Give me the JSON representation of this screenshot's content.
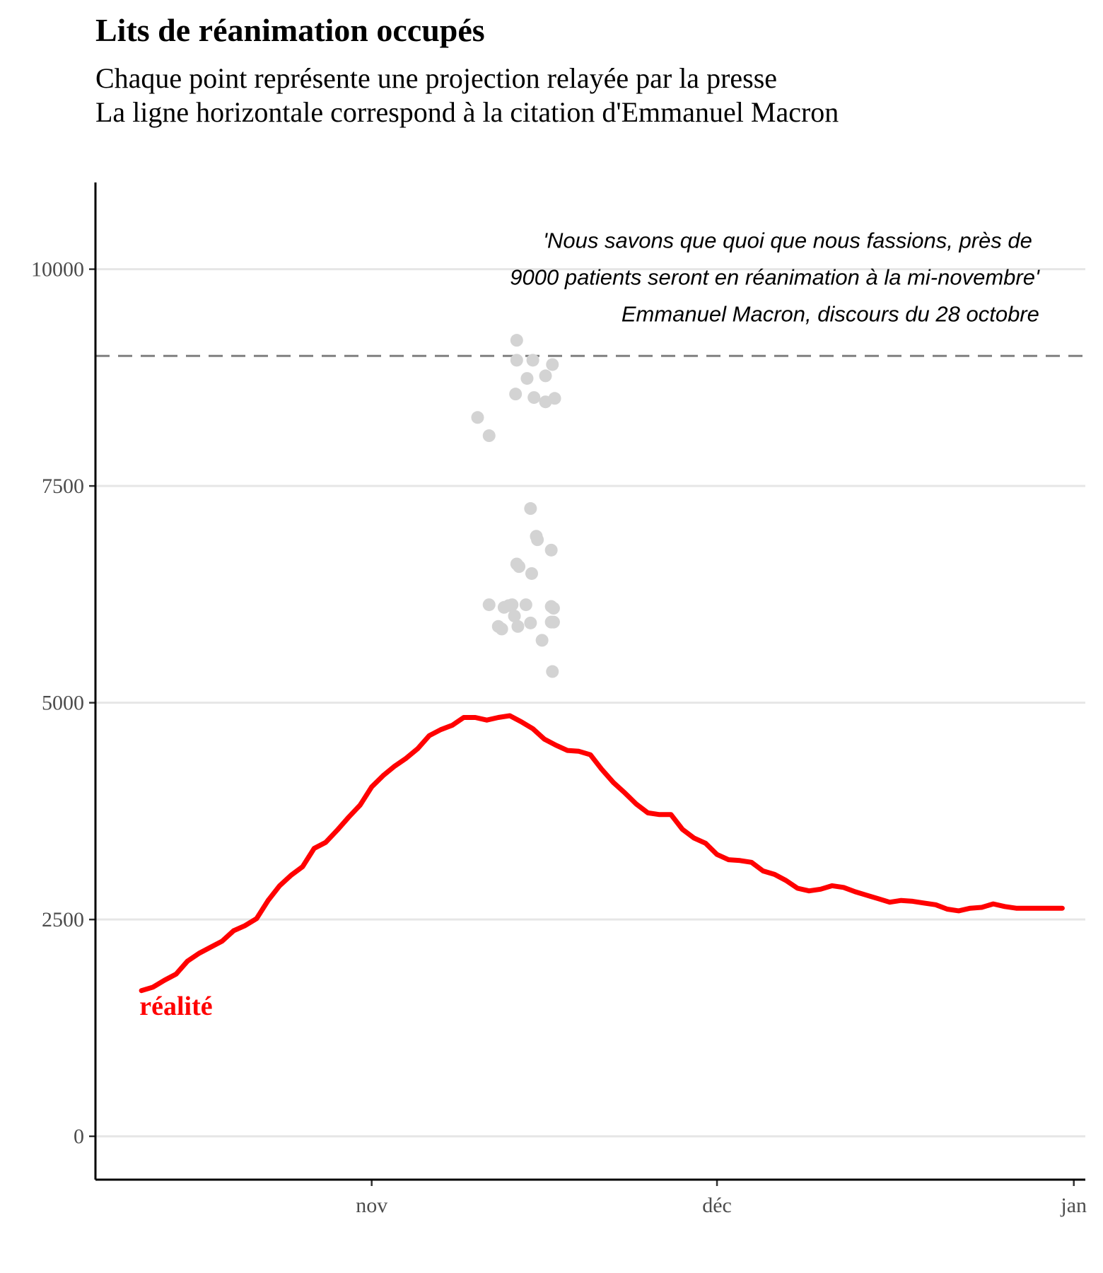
{
  "chart_data": {
    "type": "line",
    "title": "Lits de réanimation occupés",
    "subtitle_lines": [
      "Chaque point représente une projection relayée par la presse",
      "La ligne horizontale correspond à la citation d'Emmanuel Macron"
    ],
    "xlabel": "",
    "ylabel": "",
    "xlim": [
      "2020-10-08",
      "2021-01-02"
    ],
    "ylim": [
      -500,
      11000
    ],
    "x_ticks": [
      {
        "date": "2020-11-01",
        "label": "nov"
      },
      {
        "date": "2020-12-01",
        "label": "déc"
      },
      {
        "date": "2021-01-01",
        "label": "jan"
      }
    ],
    "y_ticks": [
      0,
      2500,
      5000,
      7500,
      10000
    ],
    "grid": "horizontal",
    "series": [
      {
        "name": "réalité",
        "color": "#ff0000",
        "x": [
          "2020-10-12",
          "2020-10-13",
          "2020-10-14",
          "2020-10-15",
          "2020-10-16",
          "2020-10-17",
          "2020-10-18",
          "2020-10-19",
          "2020-10-20",
          "2020-10-21",
          "2020-10-22",
          "2020-10-23",
          "2020-10-24",
          "2020-10-25",
          "2020-10-26",
          "2020-10-27",
          "2020-10-28",
          "2020-10-29",
          "2020-10-30",
          "2020-10-31",
          "2020-11-01",
          "2020-11-02",
          "2020-11-03",
          "2020-11-04",
          "2020-11-05",
          "2020-11-06",
          "2020-11-07",
          "2020-11-08",
          "2020-11-09",
          "2020-11-10",
          "2020-11-11",
          "2020-11-12",
          "2020-11-13",
          "2020-11-14",
          "2020-11-15",
          "2020-11-16",
          "2020-11-17",
          "2020-11-18",
          "2020-11-19",
          "2020-11-20",
          "2020-11-21",
          "2020-11-22",
          "2020-11-23",
          "2020-11-24",
          "2020-11-25",
          "2020-11-26",
          "2020-11-27",
          "2020-11-28",
          "2020-11-29",
          "2020-11-30",
          "2020-12-01",
          "2020-12-02",
          "2020-12-03",
          "2020-12-04",
          "2020-12-05",
          "2020-12-06",
          "2020-12-07",
          "2020-12-08",
          "2020-12-09",
          "2020-12-10",
          "2020-12-11",
          "2020-12-12",
          "2020-12-13",
          "2020-12-14",
          "2020-12-15",
          "2020-12-16",
          "2020-12-17",
          "2020-12-18",
          "2020-12-19",
          "2020-12-20",
          "2020-12-21",
          "2020-12-22",
          "2020-12-23",
          "2020-12-24",
          "2020-12-25",
          "2020-12-26",
          "2020-12-27",
          "2020-12-28",
          "2020-12-29",
          "2020-12-30",
          "2020-12-31"
        ],
        "values": [
          1680,
          1720,
          1800,
          1870,
          2020,
          2110,
          2180,
          2250,
          2370,
          2430,
          2510,
          2720,
          2890,
          3010,
          3110,
          3320,
          3390,
          3530,
          3680,
          3820,
          4030,
          4160,
          4270,
          4360,
          4470,
          4620,
          4690,
          4740,
          4830,
          4830,
          4800,
          4830,
          4850,
          4780,
          4700,
          4580,
          4510,
          4450,
          4440,
          4400,
          4230,
          4080,
          3960,
          3830,
          3730,
          3710,
          3710,
          3540,
          3440,
          3380,
          3250,
          3190,
          3180,
          3160,
          3060,
          3020,
          2950,
          2860,
          2830,
          2850,
          2890,
          2870,
          2820,
          2780,
          2740,
          2700,
          2720,
          2710,
          2690,
          2670,
          2620,
          2600,
          2630,
          2640,
          2680,
          2650,
          2630,
          2630,
          2630,
          2630,
          2630
        ]
      },
      {
        "name": "",
        "type": "scatter",
        "color": "#d3d3d3",
        "x": [
          "2020-11-10.0",
          "2020-11-12.3",
          "2020-11-12.4",
          "2020-11-13.5",
          "2020-11-13.6",
          "2020-11-13.7",
          "2020-11-14.4",
          "2020-11-14.4",
          "2020-11-14.5",
          "2020-11-14.5",
          "2020-11-14.9",
          "2020-11-10.0",
          "2020-11-11.2",
          "2020-11-14.8",
          "2020-11-15.2",
          "2020-11-13.0",
          "2020-11-16.8",
          "2020-11-16.6",
          "2020-11-15.8",
          "2020-11-15.8",
          "2020-11-16.3",
          "2020-11-16.2",
          "2020-11-11.2",
          "2020-11-10.7",
          "2020-11-13.2",
          "2020-11-13.3",
          "2020-11-13.0",
          "2020-11-13.7",
          "2020-11-16.7",
          "2020-11-12.9",
          "2020-11-15.0",
          "2020-11-16.4",
          "2020-11-16.2",
          "2020-11-10.0",
          "2020-11-17.0"
        ],
        "values": [
          6130,
          6140,
          6120,
          6130,
          6130,
          6020,
          6100,
          5940,
          5880,
          6620,
          7260,
          8330,
          8080,
          6920,
          8740,
          8570,
          6780,
          6900,
          8780,
          8530,
          6110,
          5950,
          6130,
          6120,
          6580,
          6600,
          6490,
          5900,
          6960,
          5880,
          5760,
          8510,
          8970,
          5890,
          5390
        ]
      }
    ],
    "points": {
      "dates": [
        "2020-11-10",
        "2020-11-11",
        "2020-11-11",
        "2020-11-12",
        "2020-11-12",
        "2020-11-12",
        "2020-11-12",
        "2020-11-13",
        "2020-11-13",
        "2020-11-13",
        "2020-11-13",
        "2020-11-13",
        "2020-11-13",
        "2020-11-13",
        "2020-11-13",
        "2020-11-14",
        "2020-11-14",
        "2020-11-14",
        "2020-11-14",
        "2020-11-14",
        "2020-11-15",
        "2020-11-15",
        "2020-11-15",
        "2020-11-15",
        "2020-11-15",
        "2020-11-16",
        "2020-11-16",
        "2020-11-16",
        "2020-11-16",
        "2020-11-16",
        "2020-11-16",
        "2020-11-16",
        "2020-11-16",
        "2020-11-16",
        "2020-11-16"
      ],
      "offsets": [
        0.2,
        0.2,
        0.2,
        0.0,
        0.5,
        0.9,
        0.3,
        0.6,
        0.6,
        0.5,
        0.8,
        0.4,
        0.7,
        0.6,
        0.2,
        0.5,
        0.9,
        0.4,
        0.8,
        0.8,
        0.3,
        0.1,
        0.4,
        0.0,
        0.8,
        0.1,
        0.1,
        0.6,
        0.8,
        0.6,
        0.7,
        0.9,
        0.7,
        0.6,
        0.8
      ],
      "values": [
        8290,
        8080,
        6130,
        5880,
        6100,
        6120,
        5850,
        9180,
        8950,
        8560,
        6570,
        6000,
        5880,
        6600,
        6130,
        8740,
        6490,
        6130,
        7240,
        5920,
        6920,
        8520,
        6880,
        8950,
        5720,
        8770,
        8470,
        6760,
        6090,
        5930,
        5360,
        8510,
        8900,
        6110,
        5930
      ]
    },
    "reference_line": {
      "y": 9000,
      "style": "dashed",
      "color": "#808080"
    },
    "annotation": {
      "lines": [
        "'Nous savons que quoi que nous fassions, près de",
        "9000 patients seront en réanimation à la mi-novembre'",
        "Emmanuel Macron, discours du 28 octobre"
      ],
      "anchor_date": "2020-12-29",
      "anchor_value": 10000
    },
    "series_label": {
      "text": "réalité",
      "color": "#ff0000",
      "date": "2020-10-15",
      "value": 1400
    }
  }
}
